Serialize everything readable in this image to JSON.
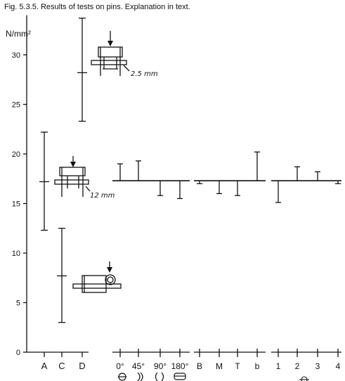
{
  "caption": "Fig. 5.3.5. Results of tests on pins. Explanation in text.",
  "chart_data": {
    "type": "error-bar",
    "ylabel": "N/mm²",
    "ylim": [
      0,
      34
    ],
    "yticks": [
      0,
      5,
      10,
      15,
      20,
      25,
      30
    ],
    "group1": {
      "categories": [
        "A",
        "C",
        "D"
      ],
      "ranges": [
        {
          "category": "A",
          "min": 12.3,
          "mean": 17.2,
          "max": 22.2
        },
        {
          "category": "C",
          "min": 3.0,
          "mean": 7.7,
          "max": 12.5
        },
        {
          "category": "D",
          "min": 23.3,
          "mean": 28.2,
          "max": 33.7
        }
      ]
    },
    "deviation_groups": [
      {
        "baseline": 17.3,
        "categories": [
          "0°",
          "45°",
          "90°",
          "180°"
        ],
        "values": [
          19.0,
          19.3,
          15.8,
          15.5
        ]
      },
      {
        "baseline": 17.3,
        "categories": [
          "B",
          "M",
          "T",
          "b"
        ],
        "values": [
          17.0,
          16.0,
          15.8,
          20.2
        ]
      },
      {
        "baseline": 17.3,
        "categories": [
          "1",
          "2",
          "3",
          "4"
        ],
        "values": [
          15.1,
          18.7,
          18.2,
          17.0
        ]
      }
    ],
    "annotations": {
      "D_gap": "2.5 mm",
      "A_gap": "12 mm"
    },
    "grid": false,
    "legend": "none"
  }
}
